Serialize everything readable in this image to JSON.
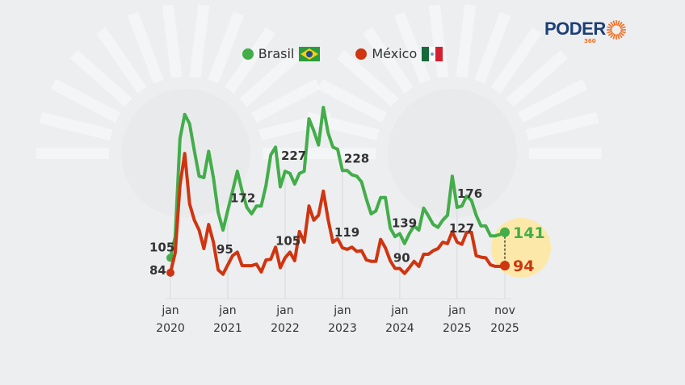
{
  "logo": {
    "text": "PODER",
    "sub": "360"
  },
  "colors": {
    "brasil": "#43ad4a",
    "mexico": "#cf3510",
    "highlight": "#fce9a9",
    "background": "#edeef0"
  },
  "chart_data": {
    "type": "line",
    "x_start": "jan 2020",
    "x_end": "nov 2025",
    "ylim": [
      60,
      330
    ],
    "grid": false,
    "legend": "top",
    "x_tick_labels": [
      {
        "month": 0,
        "line1": "jan",
        "line2": "2020"
      },
      {
        "month": 12,
        "line1": "jan",
        "line2": "2021"
      },
      {
        "month": 24,
        "line1": "jan",
        "line2": "2022"
      },
      {
        "month": 36,
        "line1": "jan",
        "line2": "2023"
      },
      {
        "month": 48,
        "line1": "jan",
        "line2": "2024"
      },
      {
        "month": 60,
        "line1": "jan",
        "line2": "2025"
      },
      {
        "month": 70,
        "line1": "nov",
        "line2": "2025"
      }
    ],
    "series": [
      {
        "name": "Brasil",
        "flag": "brazil-flag",
        "color": "#43ad4a",
        "values": [
          105,
          135,
          273,
          307,
          294,
          256,
          220,
          218,
          255,
          218,
          169,
          144,
          172,
          199,
          227,
          199,
          176,
          167,
          178,
          178,
          207,
          250,
          261,
          205,
          227,
          224,
          209,
          224,
          227,
          301,
          284,
          264,
          317,
          281,
          261,
          258,
          228,
          228,
          222,
          220,
          212,
          188,
          167,
          171,
          190,
          190,
          147,
          135,
          139,
          125,
          139,
          150,
          144,
          175,
          164,
          152,
          148,
          158,
          165,
          220,
          176,
          178,
          192,
          186,
          165,
          150,
          150,
          136,
          136,
          138,
          141
        ],
        "labels": [
          {
            "month": 0,
            "text": "105"
          },
          {
            "month": 12,
            "text": "172"
          },
          {
            "month": 24,
            "text": "227"
          },
          {
            "month": 36,
            "text": "228"
          },
          {
            "month": 48,
            "text": "139"
          },
          {
            "month": 60,
            "text": "176"
          }
        ],
        "last_label": "141"
      },
      {
        "name": "México",
        "flag": "mexico-flag",
        "color": "#cf3510",
        "values": [
          84,
          112,
          207,
          252,
          181,
          158,
          144,
          118,
          152,
          127,
          88,
          82,
          95,
          108,
          113,
          94,
          94,
          94,
          96,
          85,
          102,
          103,
          120,
          91,
          105,
          113,
          101,
          142,
          127,
          178,
          158,
          165,
          199,
          159,
          127,
          132,
          119,
          117,
          120,
          114,
          115,
          102,
          100,
          100,
          131,
          119,
          101,
          90,
          90,
          83,
          91,
          100,
          93,
          110,
          110,
          115,
          118,
          127,
          125,
          142,
          127,
          124,
          141,
          141,
          108,
          106,
          105,
          95,
          93,
          93,
          94
        ],
        "labels": [
          {
            "month": 0,
            "text": "84"
          },
          {
            "month": 12,
            "text": "95"
          },
          {
            "month": 24,
            "text": "105"
          },
          {
            "month": 36,
            "text": "119"
          },
          {
            "month": 48,
            "text": "90"
          },
          {
            "month": 60,
            "text": "127"
          }
        ],
        "last_label": "94"
      }
    ]
  }
}
